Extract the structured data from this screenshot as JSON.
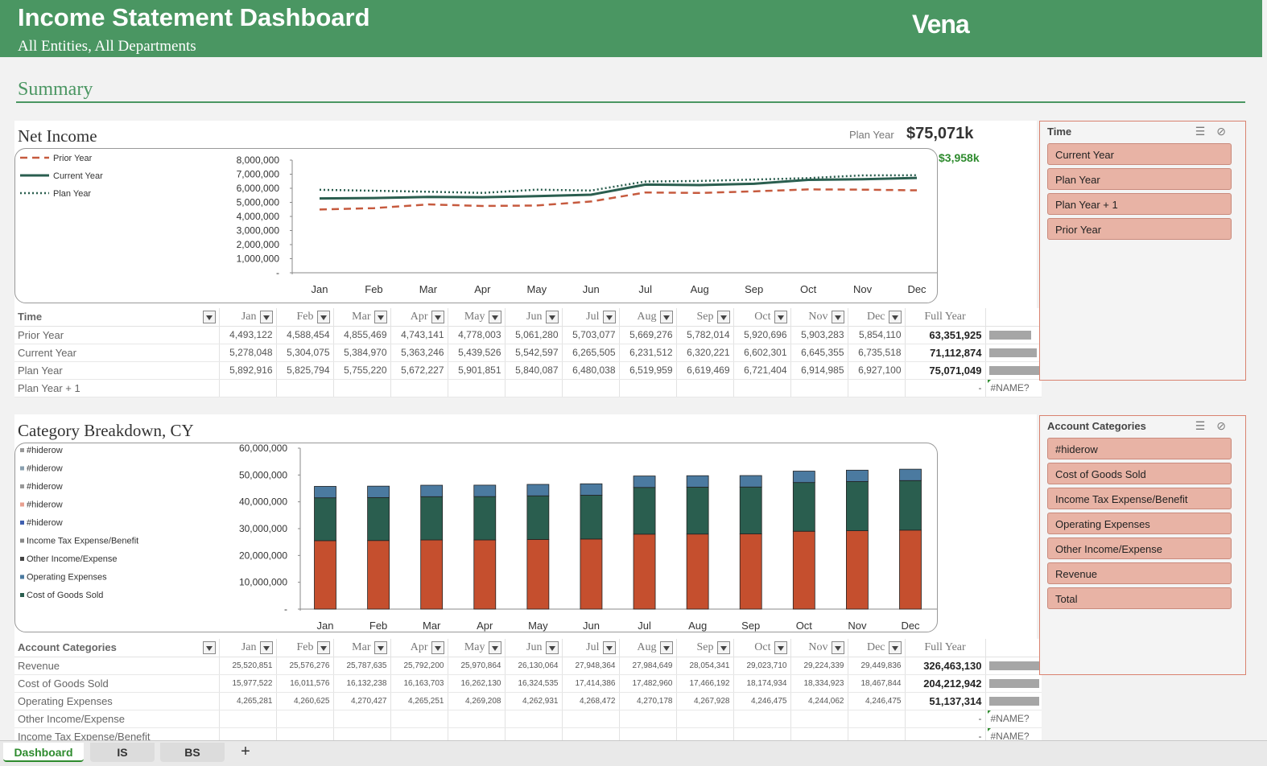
{
  "header": {
    "title": "Income Statement Dashboard",
    "subtitle": "All Entities, All Departments",
    "logo": "Vena"
  },
  "summary": {
    "title": "Summary"
  },
  "net_income": {
    "title": "Net Income",
    "plan_label": "Plan Year",
    "plan_value": "$75,071k",
    "plan_delta": "$3,958k"
  },
  "chart_data": [
    {
      "type": "line",
      "categories": [
        "Jan",
        "Feb",
        "Mar",
        "Apr",
        "May",
        "Jun",
        "Jul",
        "Aug",
        "Sep",
        "Oct",
        "Nov",
        "Dec"
      ],
      "y_ticks": [
        "8,000,000",
        "7,000,000",
        "6,000,000",
        "5,000,000",
        "4,000,000",
        "3,000,000",
        "2,000,000",
        "1,000,000",
        "-"
      ],
      "ylim": [
        0,
        8000000
      ],
      "legend_position": "left",
      "grid": false,
      "series": [
        {
          "name": "Prior Year",
          "color": "#c65a3e",
          "style": "dashed",
          "values": [
            4493122,
            4588454,
            4855469,
            4743141,
            4778003,
            5061280,
            5703077,
            5669276,
            5782014,
            5920696,
            5903283,
            5854110
          ]
        },
        {
          "name": "Current Year",
          "color": "#2a5e4f",
          "style": "solid",
          "values": [
            5278048,
            5304075,
            5384970,
            5363246,
            5439526,
            5542597,
            6265505,
            6231512,
            6320221,
            6602301,
            6645355,
            6735518
          ]
        },
        {
          "name": "Plan Year",
          "color": "#2a5e4f",
          "style": "dotted",
          "values": [
            5892916,
            5825794,
            5755220,
            5672227,
            5901851,
            5840087,
            6480038,
            6519959,
            6619469,
            6721404,
            6914985,
            6927100
          ]
        }
      ]
    },
    {
      "type": "bar",
      "stacked": true,
      "categories": [
        "Jan",
        "Feb",
        "Mar",
        "Apr",
        "May",
        "Jun",
        "Jul",
        "Aug",
        "Sep",
        "Oct",
        "Nov",
        "Dec"
      ],
      "y_ticks": [
        "60,000,000",
        "50,000,000",
        "40,000,000",
        "30,000,000",
        "20,000,000",
        "10,000,000",
        "-"
      ],
      "ylim": [
        0,
        60000000
      ],
      "legend_position": "left",
      "legend": [
        {
          "name": "#hiderow",
          "color": "#999999"
        },
        {
          "name": "#hiderow",
          "color": "#8aa0b0"
        },
        {
          "name": "#hiderow",
          "color": "#999999"
        },
        {
          "name": "#hiderow",
          "color": "#e8a090"
        },
        {
          "name": "#hiderow",
          "color": "#4060b0"
        },
        {
          "name": "Income Tax Expense/Benefit",
          "color": "#888888"
        },
        {
          "name": "Other Income/Expense",
          "color": "#444444"
        },
        {
          "name": "Operating Expenses",
          "color": "#4b7aa0"
        },
        {
          "name": "Cost of Goods Sold",
          "color": "#2a5e4f"
        }
      ],
      "series": [
        {
          "name": "Revenue",
          "color": "#c54f2e",
          "values": [
            25520851,
            25576276,
            25787635,
            25792200,
            25970864,
            26130064,
            27948364,
            27984649,
            28054341,
            29023710,
            29224339,
            29449836
          ]
        },
        {
          "name": "Cost of Goods Sold",
          "color": "#2a5e4f",
          "values": [
            15977522,
            16011576,
            16132238,
            16163703,
            16262130,
            16324535,
            17414386,
            17482960,
            17466192,
            18174934,
            18334923,
            18467844
          ]
        },
        {
          "name": "Operating Expenses",
          "color": "#4b7aa0",
          "values": [
            4265281,
            4260625,
            4270427,
            4265251,
            4269208,
            4262931,
            4268472,
            4270178,
            4267928,
            4246475,
            4244062,
            4246475
          ]
        }
      ]
    }
  ],
  "ni_table": {
    "header": "Time",
    "months": [
      "Jan",
      "Feb",
      "Mar",
      "Apr",
      "May",
      "Jun",
      "Jul",
      "Aug",
      "Sep",
      "Oct",
      "Nov",
      "Dec"
    ],
    "full_year": "Full Year",
    "rows": [
      {
        "label": "Prior Year",
        "values": [
          "4,493,122",
          "4,588,454",
          "4,855,469",
          "4,743,141",
          "4,778,003",
          "5,061,280",
          "5,703,077",
          "5,669,276",
          "5,782,014",
          "5,920,696",
          "5,903,283",
          "5,854,110"
        ],
        "total": "63,351,925",
        "bar": 0.84
      },
      {
        "label": "Current Year",
        "values": [
          "5,278,048",
          "5,304,075",
          "5,384,970",
          "5,363,246",
          "5,439,526",
          "5,542,597",
          "6,265,505",
          "6,231,512",
          "6,320,221",
          "6,602,301",
          "6,645,355",
          "6,735,518"
        ],
        "total": "71,112,874",
        "bar": 0.95
      },
      {
        "label": "Plan Year",
        "values": [
          "5,892,916",
          "5,825,794",
          "5,755,220",
          "5,672,227",
          "5,901,851",
          "5,840,087",
          "6,480,038",
          "6,519,959",
          "6,619,469",
          "6,721,404",
          "6,914,985",
          "6,927,100"
        ],
        "total": "75,071,049",
        "bar": 1.0
      },
      {
        "label": "Plan Year + 1",
        "dash": "-",
        "err": "#NAME?"
      }
    ]
  },
  "category": {
    "title": "Category Breakdown, CY"
  },
  "cat_table": {
    "header": "Account Categories",
    "months": [
      "Jan",
      "Feb",
      "Mar",
      "Apr",
      "May",
      "Jun",
      "Jul",
      "Aug",
      "Sep",
      "Oct",
      "Nov",
      "Dec"
    ],
    "full_year": "Full Year",
    "rows": [
      {
        "label": "Revenue",
        "values": [
          "25,520,851",
          "25,576,276",
          "25,787,635",
          "25,792,200",
          "25,970,864",
          "26,130,064",
          "27,948,364",
          "27,984,649",
          "28,054,341",
          "29,023,710",
          "29,224,339",
          "29,449,836"
        ],
        "total": "326,463,130",
        "bar": 1.0
      },
      {
        "label": "Cost of Goods Sold",
        "values": [
          "15,977,522",
          "16,011,576",
          "16,132,238",
          "16,163,703",
          "16,262,130",
          "16,324,535",
          "17,414,386",
          "17,482,960",
          "17,466,192",
          "18,174,934",
          "18,334,923",
          "18,467,844"
        ],
        "total": "204,212,942",
        "bar": 1.0
      },
      {
        "label": "Operating Expenses",
        "values": [
          "4,265,281",
          "4,260,625",
          "4,270,427",
          "4,265,251",
          "4,269,208",
          "4,262,931",
          "4,268,472",
          "4,270,178",
          "4,267,928",
          "4,246,475",
          "4,244,062",
          "4,246,475"
        ],
        "total": "51,137,314",
        "bar": 1.0
      },
      {
        "label": "Other Income/Expense",
        "dash": "-",
        "err": "#NAME?"
      },
      {
        "label": "Income Tax Expense/Benefit",
        "dash": "-",
        "err": "#NAME?"
      }
    ]
  },
  "slicer_time": {
    "title": "Time",
    "items": [
      "Current Year",
      "Plan Year",
      "Plan Year + 1",
      "Prior Year"
    ]
  },
  "slicer_accounts": {
    "title": "Account Categories",
    "items": [
      "#hiderow",
      "Cost of Goods Sold",
      "Income Tax Expense/Benefit",
      "Operating Expenses",
      "Other Income/Expense",
      "Revenue",
      "Total"
    ]
  },
  "tabs": [
    "Dashboard",
    "IS",
    "BS",
    "+"
  ]
}
